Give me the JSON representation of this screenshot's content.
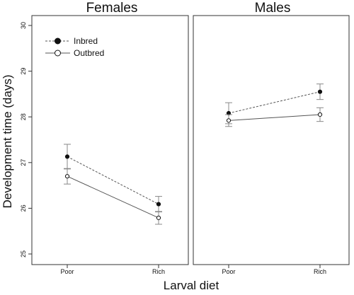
{
  "chart_data": {
    "type": "line",
    "ylabel": "Development time (days)",
    "xlabel": "Larval diet",
    "ylim": [
      25,
      30
    ],
    "yticks": [
      "25",
      "26",
      "27",
      "28",
      "29",
      "30"
    ],
    "categories": [
      "Poor",
      "Rich"
    ],
    "legend": {
      "placement": "top-left",
      "entries": [
        {
          "name": "Inbred",
          "marker": "filled-circle",
          "line": "dashed"
        },
        {
          "name": "Outbred",
          "marker": "open-circle",
          "line": "solid"
        }
      ]
    },
    "panels": [
      {
        "title": "Females",
        "series": [
          {
            "name": "Inbred",
            "values": [
              27.13,
              26.09
            ],
            "error": [
              0.27,
              0.17
            ]
          },
          {
            "name": "Outbred",
            "values": [
              26.7,
              25.79
            ],
            "error": [
              0.17,
              0.14
            ]
          }
        ]
      },
      {
        "title": "Males",
        "series": [
          {
            "name": "Inbred",
            "values": [
              28.08,
              28.55
            ],
            "error": [
              0.23,
              0.17
            ]
          },
          {
            "name": "Outbred",
            "values": [
              27.92,
              28.05
            ],
            "error": [
              0.13,
              0.15
            ]
          }
        ]
      }
    ],
    "colors": {
      "line": "#555555",
      "errorbar": "#888888",
      "marker": "#111111"
    }
  }
}
